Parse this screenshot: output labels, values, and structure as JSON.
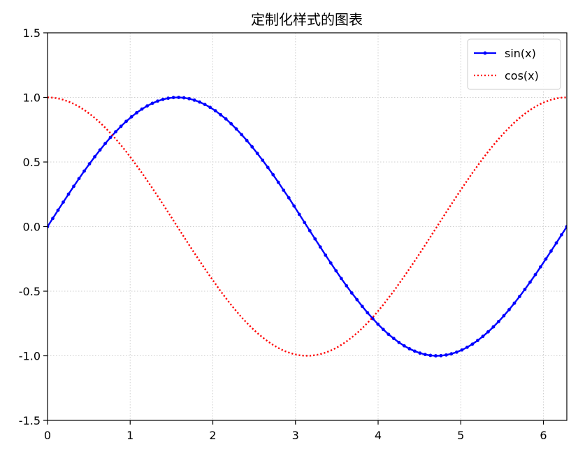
{
  "chart_data": {
    "type": "line",
    "title": "定制化样式的图表",
    "xlabel": "",
    "ylabel": "",
    "xlim": [
      0,
      6.283185307
    ],
    "ylim": [
      -1.5,
      1.5
    ],
    "xticks": [
      0,
      1,
      2,
      3,
      4,
      5,
      6
    ],
    "xtick_labels": [
      "0",
      "1",
      "2",
      "3",
      "4",
      "5",
      "6"
    ],
    "yticks": [
      -1.5,
      -1.0,
      -0.5,
      0.0,
      0.5,
      1.0,
      1.5
    ],
    "ytick_labels": [
      "-1.5",
      "-1.0",
      "-0.5",
      "0.0",
      "0.5",
      "1.0",
      "1.5"
    ],
    "grid": true,
    "legend_position": "top-right",
    "series": [
      {
        "name": "sin(x)",
        "color": "#0000ff",
        "line_style": "solid",
        "marker": "dot",
        "x": [
          0.0,
          0.0635,
          0.1269,
          0.1904,
          0.2539,
          0.3173,
          0.3808,
          0.4443,
          0.5077,
          0.5712,
          0.6347,
          0.6981,
          0.7616,
          0.8251,
          0.8885,
          0.952,
          1.0155,
          1.0789,
          1.1424,
          1.2059,
          1.2693,
          1.3328,
          1.3963,
          1.4597,
          1.5232,
          1.5867,
          1.6501,
          1.7136,
          1.7771,
          1.8405,
          1.904,
          1.9675,
          2.0309,
          2.0944,
          2.1579,
          2.2213,
          2.2848,
          2.3483,
          2.4117,
          2.4752,
          2.5387,
          2.6021,
          2.6656,
          2.7291,
          2.7925,
          2.856,
          2.9195,
          2.9829,
          3.0464,
          3.1099,
          3.1733,
          3.2368,
          3.3003,
          3.3637,
          3.4272,
          3.4907,
          3.5541,
          3.6176,
          3.6811,
          3.7445,
          3.808,
          3.8715,
          3.9349,
          3.9984,
          4.0619,
          4.1253,
          4.1888,
          4.2523,
          4.3157,
          4.3792,
          4.4427,
          4.5061,
          4.5696,
          4.6331,
          4.6965,
          4.76,
          4.8235,
          4.8869,
          4.9504,
          5.0139,
          5.0773,
          5.1408,
          5.2043,
          5.2677,
          5.3312,
          5.3947,
          5.4581,
          5.5216,
          5.5851,
          5.6485,
          5.712,
          5.7755,
          5.8389,
          5.9024,
          5.9659,
          6.0293,
          6.0928,
          6.1563,
          6.2197,
          6.2832
        ],
        "values": [
          0.0,
          0.0634,
          0.1266,
          0.1893,
          0.2511,
          0.312,
          0.3717,
          0.4298,
          0.4862,
          0.5406,
          0.5929,
          0.6428,
          0.69,
          0.7346,
          0.7761,
          0.8146,
          0.8497,
          0.8815,
          0.9096,
          0.9341,
          0.9549,
          0.9718,
          0.9848,
          0.9938,
          0.999,
          1.0,
          0.997,
          0.99,
          0.979,
          0.9641,
          0.9454,
          0.9229,
          0.8968,
          0.866,
          0.8336,
          0.7961,
          0.7557,
          0.7119,
          0.6666,
          0.6175,
          0.5665,
          0.5137,
          0.4582,
          0.4015,
          0.3429,
          0.2817,
          0.2229,
          0.1595,
          0.0951,
          0.0317,
          -0.0317,
          -0.0951,
          -0.1576,
          -0.221,
          -0.2817,
          -0.342,
          -0.4016,
          -0.4582,
          -0.5137,
          -0.5656,
          -0.6175,
          -0.6666,
          -0.7119,
          -0.7557,
          -0.7961,
          -0.8336,
          -0.866,
          -0.8968,
          -0.9229,
          -0.9454,
          -0.9641,
          -0.979,
          -0.99,
          -0.997,
          -1.0,
          -0.999,
          -0.9938,
          -0.9848,
          -0.9718,
          -0.9549,
          -0.9341,
          -0.9096,
          -0.8815,
          -0.8497,
          -0.8146,
          -0.7761,
          -0.7346,
          -0.69,
          -0.6428,
          -0.5929,
          -0.5406,
          -0.4862,
          -0.4298,
          -0.3717,
          -0.312,
          -0.2511,
          -0.1893,
          -0.1266,
          -0.0634,
          0.0
        ]
      },
      {
        "name": "cos(x)",
        "color": "#ff0000",
        "line_style": "dotted",
        "marker": "none",
        "x": [
          0.0,
          0.0635,
          0.1269,
          0.1904,
          0.2539,
          0.3173,
          0.3808,
          0.4443,
          0.5077,
          0.5712,
          0.6347,
          0.6981,
          0.7616,
          0.8251,
          0.8885,
          0.952,
          1.0155,
          1.0789,
          1.1424,
          1.2059,
          1.2693,
          1.3328,
          1.3963,
          1.4597,
          1.5232,
          1.5867,
          1.6501,
          1.7136,
          1.7771,
          1.8405,
          1.904,
          1.9675,
          2.0309,
          2.0944,
          2.1579,
          2.2213,
          2.2848,
          2.3483,
          2.4117,
          2.4752,
          2.5387,
          2.6021,
          2.6656,
          2.7291,
          2.7925,
          2.856,
          2.9195,
          2.9829,
          3.0464,
          3.1099,
          3.1733,
          3.2368,
          3.3003,
          3.3637,
          3.4272,
          3.4907,
          3.5541,
          3.6176,
          3.6811,
          3.7445,
          3.808,
          3.8715,
          3.9349,
          3.9984,
          4.0619,
          4.1253,
          4.1888,
          4.2523,
          4.3157,
          4.3792,
          4.4427,
          4.5061,
          4.5696,
          4.6331,
          4.6965,
          4.76,
          4.8235,
          4.8869,
          4.9504,
          5.0139,
          5.0773,
          5.1408,
          5.2043,
          5.2677,
          5.3312,
          5.3947,
          5.4581,
          5.5216,
          5.5851,
          5.6485,
          5.712,
          5.7755,
          5.8389,
          5.9024,
          5.9659,
          6.0293,
          6.0928,
          6.1563,
          6.2197,
          6.2832
        ],
        "values": [
          1.0,
          0.998,
          0.992,
          0.9819,
          0.9679,
          0.9501,
          0.9284,
          0.9029,
          0.8738,
          0.8413,
          0.8053,
          0.766,
          0.7237,
          0.6785,
          0.6305,
          0.58,
          0.527,
          0.4719,
          0.4151,
          0.3564,
          0.2967,
          0.2357,
          0.1736,
          0.1109,
          0.0476,
          -0.0159,
          -0.0794,
          -0.1423,
          -0.2048,
          -0.2661,
          -0.3264,
          -0.3852,
          -0.4425,
          -0.5,
          -0.5534,
          -0.6056,
          -0.6546,
          -0.7023,
          -0.7453,
          -0.7861,
          -0.8241,
          -0.8577,
          -0.8885,
          -0.9158,
          -0.9393,
          -0.9598,
          -0.9748,
          -0.9872,
          -0.9955,
          -0.9995,
          -0.9995,
          -0.9955,
          -0.9875,
          -0.9753,
          -0.9595,
          -0.9397,
          -0.9158,
          -0.8888,
          -0.8577,
          -0.8246,
          -0.7865,
          -0.7453,
          -0.7021,
          -0.6546,
          -0.6054,
          -0.5523,
          -0.5,
          -0.4425,
          -0.3852,
          -0.3264,
          -0.2661,
          -0.2048,
          -0.1423,
          -0.0794,
          -0.0159,
          0.0476,
          0.1109,
          0.1736,
          0.2357,
          0.2967,
          0.3564,
          0.4151,
          0.4719,
          0.527,
          0.58,
          0.6305,
          0.6785,
          0.7237,
          0.766,
          0.8053,
          0.8413,
          0.8738,
          0.9029,
          0.9284,
          0.9501,
          0.9679,
          0.9819,
          0.992,
          0.998,
          1.0
        ]
      }
    ]
  }
}
